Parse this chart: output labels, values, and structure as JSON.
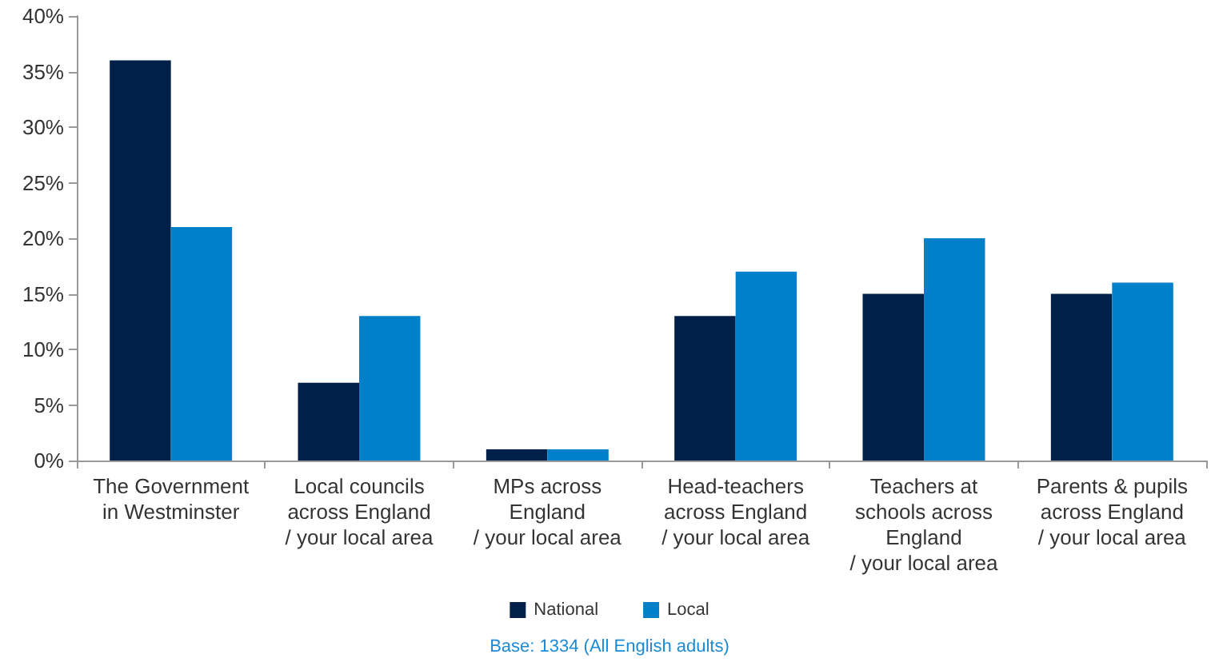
{
  "chart_data": {
    "type": "bar",
    "categories": [
      "The Government\nin Westminster",
      "Local councils\nacross England\n/ your local area",
      "MPs across\nEngland\n/ your local area",
      "Head-teachers\nacross England\n/ your local area",
      "Teachers at\nschools across\nEngland\n/ your local area",
      "Parents & pupils\nacross England\n/ your local area"
    ],
    "series": [
      {
        "name": "National",
        "color": "#00204a",
        "values": [
          36,
          7,
          1,
          13,
          15,
          15
        ]
      },
      {
        "name": "Local",
        "color": "#0080c8",
        "values": [
          21,
          13,
          1,
          17,
          20,
          16
        ]
      }
    ],
    "ylim": [
      0,
      40
    ],
    "yticks": [
      {
        "value": 0,
        "label": "0%"
      },
      {
        "value": 5,
        "label": "5%"
      },
      {
        "value": 10,
        "label": "10%"
      },
      {
        "value": 15,
        "label": "15%"
      },
      {
        "value": 20,
        "label": "20%"
      },
      {
        "value": 25,
        "label": "25%"
      },
      {
        "value": 30,
        "label": "30%"
      },
      {
        "value": 35,
        "label": "35%"
      },
      {
        "value": 40,
        "label": "40%"
      }
    ],
    "grid": false,
    "legend": "bottom",
    "annotations": [
      "Base: 1334 (All English adults)"
    ]
  }
}
